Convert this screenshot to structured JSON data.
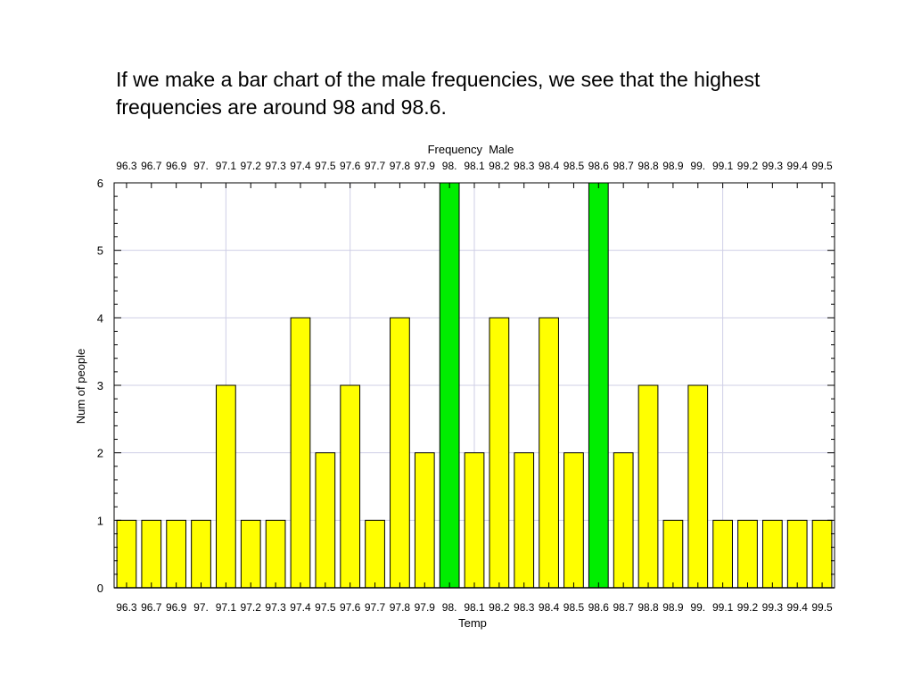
{
  "caption": "If we make a bar chart of the male frequencies, we see that the highest frequencies are around 98 and 98.6.",
  "colors": {
    "bar": "#ffff00",
    "highlight": "#00ee00",
    "grid": "#cfcfe6",
    "axis": "#000000"
  },
  "chart_data": {
    "type": "bar",
    "title": "Frequency  Male",
    "xlabel": "Temp",
    "ylabel": "Num of people",
    "ylim": [
      0,
      6
    ],
    "yticks": [
      0,
      1,
      2,
      3,
      4,
      5,
      6
    ],
    "grid": true,
    "categories": [
      "96.3",
      "96.7",
      "96.9",
      "97.",
      "97.1",
      "97.2",
      "97.3",
      "97.4",
      "97.5",
      "97.6",
      "97.7",
      "97.8",
      "97.9",
      "98.",
      "98.1",
      "98.2",
      "98.3",
      "98.4",
      "98.5",
      "98.6",
      "98.7",
      "98.8",
      "98.9",
      "99.",
      "99.1",
      "99.2",
      "99.3",
      "99.4",
      "99.5"
    ],
    "values": [
      1,
      1,
      1,
      1,
      3,
      1,
      1,
      4,
      2,
      3,
      1,
      4,
      2,
      6,
      2,
      4,
      2,
      4,
      2,
      6,
      2,
      3,
      1,
      3,
      1,
      1,
      1,
      1,
      1
    ],
    "highlighted_categories": [
      "98.",
      "98.6"
    ]
  }
}
